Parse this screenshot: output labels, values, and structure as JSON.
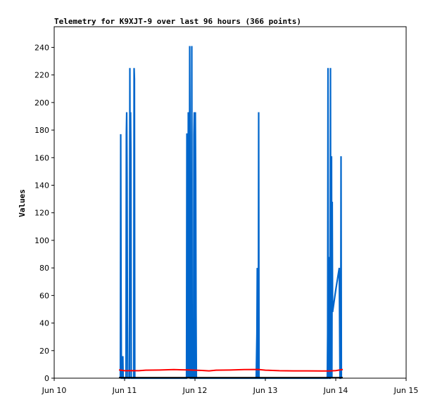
{
  "chart_data": {
    "type": "line",
    "title": "Telemetry for K9XJT-9 over last 96 hours (366 points)",
    "ylabel": "Values",
    "xlabel": "",
    "ylim": [
      0,
      255
    ],
    "xlim": [
      0,
      5
    ],
    "x_tick_labels": [
      "Jun 10",
      "Jun 11",
      "Jun 12",
      "Jun 13",
      "Jun 14",
      "Jun 15"
    ],
    "y_ticks": [
      0,
      20,
      40,
      60,
      80,
      100,
      120,
      140,
      160,
      180,
      200,
      220,
      240
    ],
    "grid": false,
    "series": [
      {
        "color": "#0066cc",
        "points": [
          [
            0.94,
            0
          ],
          [
            0.945,
            177
          ],
          [
            0.95,
            65
          ],
          [
            0.955,
            0
          ],
          [
            0.97,
            0
          ],
          [
            0.975,
            16
          ],
          [
            0.98,
            0
          ],
          [
            1.02,
            0
          ],
          [
            1.025,
            177
          ],
          [
            1.03,
            193
          ],
          [
            1.035,
            145
          ],
          [
            1.04,
            48
          ],
          [
            1.045,
            0
          ],
          [
            1.07,
            0
          ],
          [
            1.075,
            225
          ],
          [
            1.08,
            97
          ],
          [
            1.085,
            193
          ],
          [
            1.09,
            161
          ],
          [
            1.095,
            0
          ],
          [
            1.13,
            0
          ],
          [
            1.135,
            225
          ],
          [
            1.14,
            217
          ],
          [
            1.145,
            0
          ],
          [
            1.88,
            0
          ],
          [
            1.885,
            177
          ],
          [
            1.89,
            177
          ],
          [
            1.895,
            177
          ],
          [
            1.9,
            0
          ],
          [
            1.905,
            193
          ],
          [
            1.91,
            177
          ],
          [
            1.915,
            0
          ],
          [
            1.92,
            32
          ],
          [
            1.925,
            241
          ],
          [
            1.93,
            177
          ],
          [
            1.935,
            0
          ],
          [
            1.95,
            0
          ],
          [
            1.955,
            241
          ],
          [
            1.96,
            0
          ],
          [
            1.98,
            0
          ],
          [
            1.985,
            177
          ],
          [
            1.99,
            193
          ],
          [
            1.995,
            0
          ],
          [
            2.0,
            0
          ],
          [
            2.005,
            193
          ],
          [
            2.01,
            145
          ],
          [
            2.015,
            48
          ],
          [
            2.02,
            0
          ],
          [
            2.87,
            0
          ],
          [
            2.875,
            16
          ],
          [
            2.88,
            32
          ],
          [
            2.885,
            80
          ],
          [
            2.89,
            0
          ],
          [
            2.9,
            0
          ],
          [
            2.905,
            193
          ],
          [
            2.91,
            0
          ],
          [
            3.88,
            0
          ],
          [
            3.885,
            32
          ],
          [
            3.89,
            225
          ],
          [
            3.895,
            0
          ],
          [
            3.9,
            88
          ],
          [
            3.905,
            0
          ],
          [
            3.92,
            0
          ],
          [
            3.925,
            225
          ],
          [
            3.93,
            0
          ],
          [
            3.94,
            161
          ],
          [
            3.945,
            0
          ],
          [
            3.95,
            128
          ],
          [
            3.955,
            48
          ],
          [
            4.0,
            64
          ],
          [
            4.05,
            80
          ],
          [
            4.06,
            0
          ],
          [
            4.07,
            0
          ],
          [
            4.075,
            161
          ],
          [
            4.08,
            0
          ]
        ]
      },
      {
        "color": "#ff0000",
        "points": [
          [
            0.92,
            6.0
          ],
          [
            1.0,
            5.4
          ],
          [
            1.1,
            5.5
          ],
          [
            1.2,
            5.4
          ],
          [
            1.3,
            5.8
          ],
          [
            1.5,
            5.9
          ],
          [
            1.7,
            6.2
          ],
          [
            1.9,
            6.0
          ],
          [
            2.1,
            5.6
          ],
          [
            2.2,
            5.3
          ],
          [
            2.3,
            5.8
          ],
          [
            2.5,
            5.9
          ],
          [
            2.7,
            6.2
          ],
          [
            2.9,
            6.3
          ],
          [
            3.0,
            5.8
          ],
          [
            3.2,
            5.4
          ],
          [
            3.4,
            5.3
          ],
          [
            3.6,
            5.3
          ],
          [
            3.8,
            5.2
          ],
          [
            3.9,
            5.2
          ],
          [
            4.0,
            5.5
          ],
          [
            4.1,
            6.3
          ]
        ]
      },
      {
        "color": "#000000",
        "points": [
          [
            0.92,
            0.4
          ],
          [
            4.1,
            0.4
          ]
        ]
      }
    ]
  }
}
